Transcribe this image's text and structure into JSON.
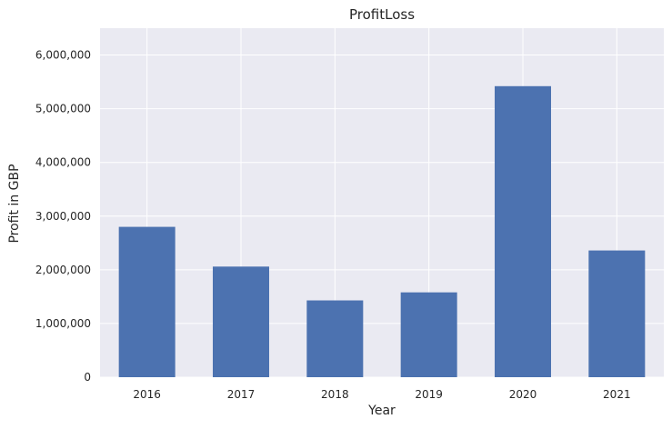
{
  "chart_data": {
    "type": "bar",
    "title": "ProfitLoss",
    "xlabel": "Year",
    "ylabel": "Profit in GBP",
    "categories": [
      "2016",
      "2017",
      "2018",
      "2019",
      "2020",
      "2021"
    ],
    "values": [
      2800000,
      2060000,
      1430000,
      1580000,
      5420000,
      2360000
    ],
    "ylim": [
      0,
      6500000
    ],
    "yticks": [
      0,
      1000000,
      2000000,
      3000000,
      4000000,
      5000000,
      6000000
    ],
    "ytick_labels": [
      "0",
      "1,000,000",
      "2,000,000",
      "3,000,000",
      "4,000,000",
      "5,000,000",
      "6,000,000"
    ],
    "grid": true,
    "colors": {
      "bar": "#4c72b0",
      "plot_background": "#eaeaf2",
      "grid": "#ffffff"
    }
  }
}
